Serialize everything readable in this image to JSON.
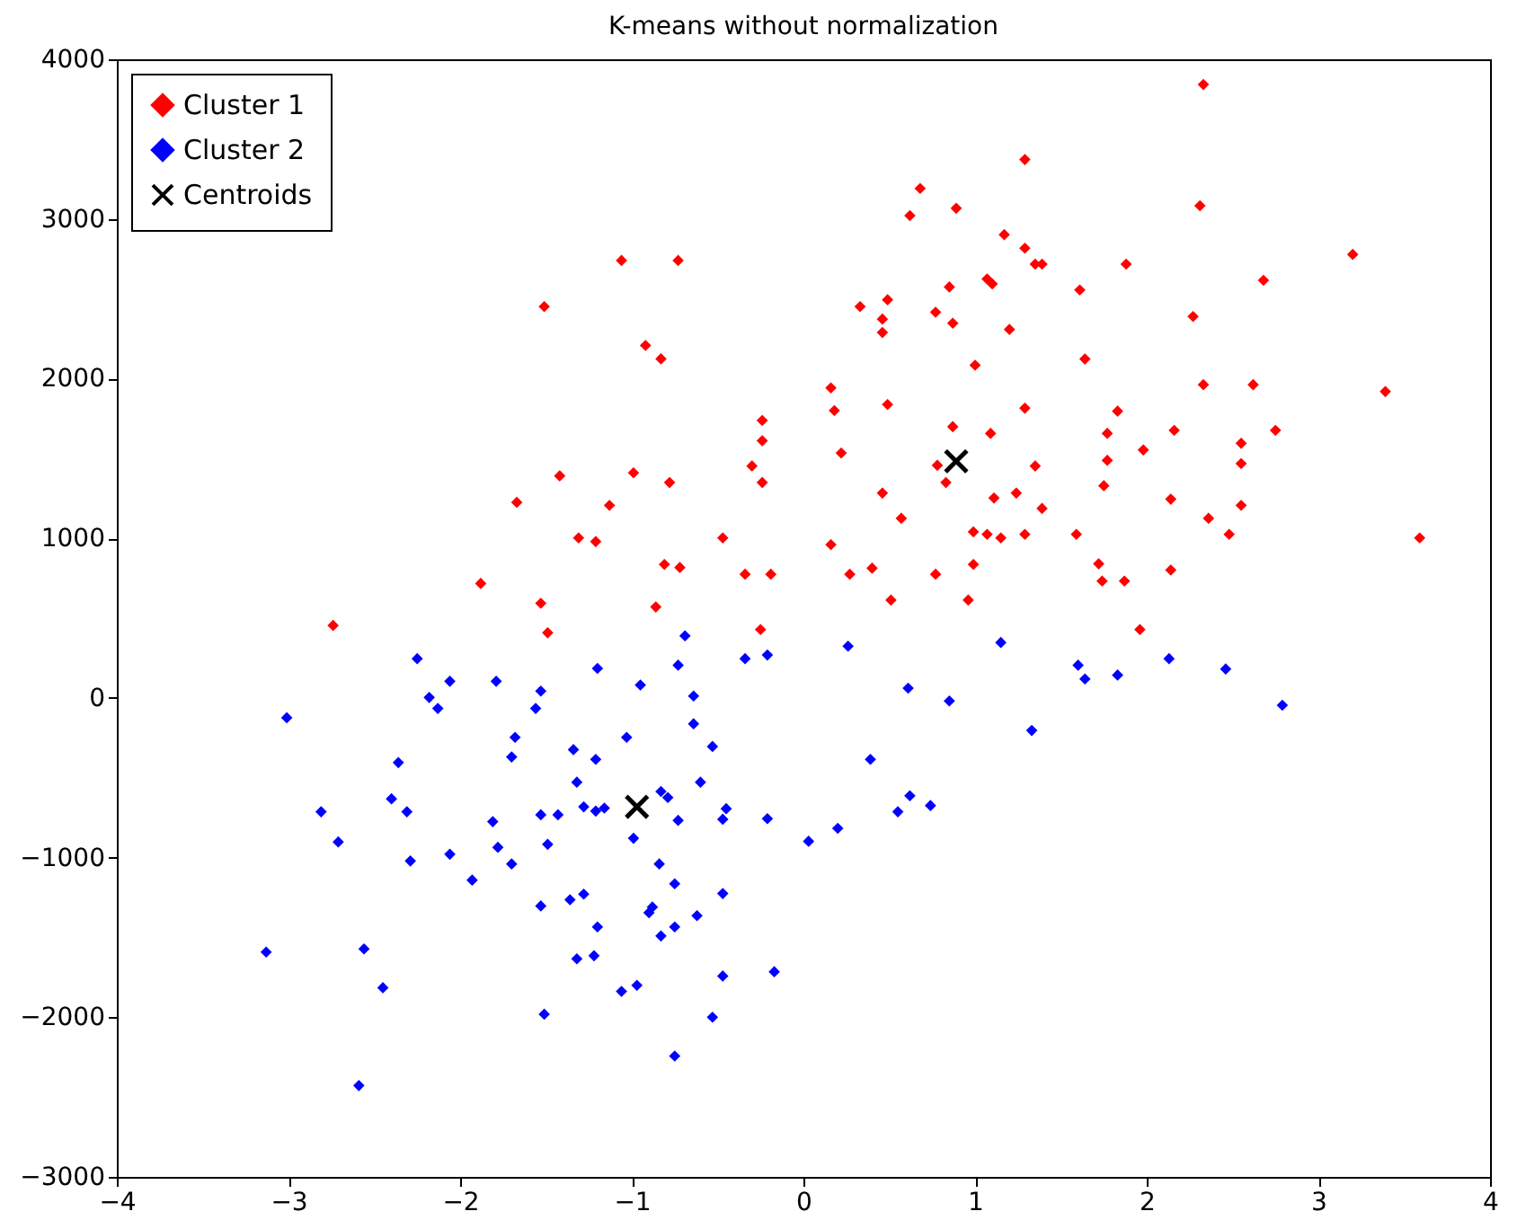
{
  "chart_data": {
    "type": "scatter",
    "title": "K-means without normalization",
    "xlim": [
      -4,
      4
    ],
    "ylim": [
      -3000,
      4000
    ],
    "xticks": [
      -4,
      -3,
      -2,
      -1,
      0,
      1,
      2,
      3,
      4
    ],
    "yticks": [
      -3000,
      -2000,
      -1000,
      0,
      1000,
      2000,
      3000,
      4000
    ],
    "grid": false,
    "legend": "top left",
    "series": [
      {
        "name": "Cluster 1",
        "color": "#ff0000",
        "marker": "diamond",
        "x": [
          -1.06,
          -0.73,
          -1.51,
          -0.92,
          -0.83,
          -0.24,
          -0.24,
          -0.3,
          -0.24,
          -1.42,
          -0.99,
          -0.78,
          -1.67,
          -1.13,
          -1.31,
          -1.21,
          -0.47,
          -0.81,
          -0.72,
          -0.34,
          -0.19,
          -1.88,
          -1.53,
          -0.86,
          -2.74,
          -1.49,
          -0.25,
          2.33,
          1.29,
          0.68,
          0.62,
          0.89,
          2.31,
          1.17,
          1.29,
          1.35,
          1.39,
          1.88,
          3.2,
          2.68,
          1.07,
          1.1,
          0.85,
          1.61,
          0.33,
          0.49,
          0.46,
          0.46,
          0.77,
          0.87,
          1.2,
          2.27,
          1.0,
          1.64,
          0.16,
          2.33,
          2.62,
          3.39,
          0.18,
          0.49,
          1.29,
          1.83,
          0.87,
          1.09,
          1.77,
          2.16,
          2.75,
          0.22,
          1.98,
          2.55,
          2.55,
          1.77,
          1.35,
          0.78,
          0.83,
          0.46,
          1.11,
          1.24,
          1.39,
          1.75,
          2.14,
          2.55,
          0.57,
          2.36,
          2.48,
          0.16,
          0.99,
          1.07,
          1.15,
          1.29,
          1.59,
          3.59,
          0.27,
          0.4,
          0.77,
          0.99,
          1.72,
          1.74,
          1.87,
          2.14,
          0.51,
          0.96,
          1.96
        ],
        "values": [
          2740,
          2740,
          2451,
          2208,
          2124,
          1738,
          1611,
          1453,
          1349,
          1391,
          1410,
          1349,
          1225,
          1206,
          1002,
          979,
          1002,
          836,
          817,
          775,
          775,
          717,
          593,
          570,
          454,
          408,
          428,
          3842,
          3372,
          3191,
          3021,
          3067,
          3083,
          2902,
          2817,
          2717,
          2717,
          2717,
          2778,
          2616,
          2624,
          2593,
          2574,
          2555,
          2451,
          2494,
          2373,
          2289,
          2416,
          2347,
          2308,
          2389,
          2084,
          2123,
          1942,
          1962,
          1962,
          1919,
          1800,
          1838,
          1815,
          1796,
          1699,
          1657,
          1657,
          1676,
          1676,
          1534,
          1553,
          1595,
          1468,
          1488,
          1453,
          1457,
          1349,
          1283,
          1252,
          1283,
          1187,
          1329,
          1245,
          1206,
          1125,
          1125,
          1025,
          960,
          1040,
          1025,
          1002,
          1025,
          1025,
          1002,
          775,
          813,
          775,
          836,
          840,
          732,
          732,
          801,
          613,
          613,
          428
        ]
      },
      {
        "name": "Cluster 2",
        "color": "#0000ff",
        "marker": "diamond",
        "x": [
          -0.69,
          -2.25,
          -2.06,
          -1.79,
          -1.53,
          -1.2,
          -0.95,
          -0.73,
          -0.34,
          -0.21,
          -0.64,
          -2.18,
          -2.13,
          -1.56,
          -3.01,
          -0.64,
          -1.68,
          -1.03,
          -1.7,
          -1.34,
          -1.21,
          -0.53,
          -2.36,
          -1.32,
          -0.6,
          -2.4,
          -2.81,
          -2.31,
          -1.81,
          -1.53,
          -1.43,
          -1.28,
          -1.21,
          -1.16,
          -0.83,
          -0.79,
          -0.73,
          -0.45,
          -0.47,
          -0.21,
          -0.99,
          -2.71,
          -2.29,
          -2.06,
          -1.78,
          -1.7,
          -1.49,
          -1.93,
          -0.84,
          -0.75,
          -1.53,
          -1.36,
          -1.28,
          -0.88,
          -0.9,
          -0.47,
          -0.62,
          -1.2,
          -0.75,
          -0.83,
          -1.32,
          -1.22,
          -3.13,
          -2.56,
          -2.45,
          -1.06,
          -0.97,
          -0.47,
          -0.17,
          -1.51,
          -0.53,
          -0.75,
          -2.59,
          0.26,
          1.15,
          0.61,
          0.85,
          1.33,
          1.6,
          1.64,
          1.83,
          2.13,
          2.46,
          2.79,
          0.39,
          0.62,
          0.55,
          0.74,
          0.2,
          0.03
        ],
        "values": [
          389,
          246,
          104,
          104,
          43,
          185,
          81,
          205,
          246,
          269,
          12,
          3,
          -66,
          -66,
          -124,
          -162,
          -247,
          -247,
          -370,
          -324,
          -385,
          -304,
          -405,
          -528,
          -528,
          -632,
          -713,
          -713,
          -775,
          -732,
          -732,
          -682,
          -709,
          -690,
          -586,
          -624,
          -767,
          -694,
          -760,
          -756,
          -879,
          -902,
          -1021,
          -979,
          -936,
          -1040,
          -917,
          -1141,
          -1040,
          -1164,
          -1303,
          -1264,
          -1229,
          -1310,
          -1345,
          -1225,
          -1364,
          -1434,
          -1434,
          -1491,
          -1634,
          -1615,
          -1592,
          -1572,
          -1815,
          -1838,
          -1800,
          -1742,
          -1715,
          -1981,
          -2000,
          -2243,
          -2428,
          324,
          347,
          61,
          -19,
          -204,
          205,
          119,
          143,
          246,
          181,
          -46,
          -385,
          -613,
          -713,
          -674,
          -817,
          -898
        ]
      },
      {
        "name": "Centroids",
        "color": "#000000",
        "marker": "cross",
        "x": [
          0.89,
          -0.97
        ],
        "values": [
          1482,
          -682
        ]
      }
    ]
  }
}
